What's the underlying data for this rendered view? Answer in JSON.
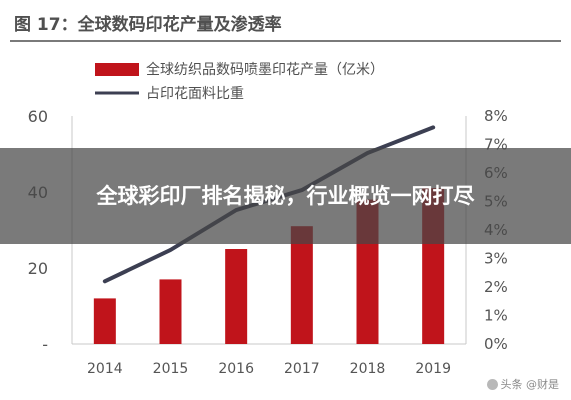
{
  "figure_title": "图 17：全球数码印花产量及渗透率",
  "overlay_title": "全球彩印厂排名揭秘，行业概览一网打尽",
  "watermark": "头条 @财是",
  "colors": {
    "bar": "#c0141b",
    "line": "#3c3f52",
    "axis": "#c8c8c8",
    "tick_text": "#555555",
    "overlay": "#464646"
  },
  "chart_data": {
    "type": "bar+line",
    "categories": [
      "2014",
      "2015",
      "2016",
      "2017",
      "2018",
      "2019"
    ],
    "series": [
      {
        "name": "全球纺织品数码喷墨印花产量（亿米）",
        "type": "bar",
        "axis": "left",
        "values": [
          12,
          17,
          25,
          31,
          38,
          41
        ]
      },
      {
        "name": "占印花面料比重",
        "type": "line",
        "axis": "right",
        "values": [
          2.2,
          3.3,
          4.7,
          5.4,
          6.7,
          7.6
        ]
      }
    ],
    "left_axis": {
      "ticks": [
        "60",
        "40",
        "20",
        "-"
      ],
      "ylim": [
        0,
        60
      ]
    },
    "right_axis": {
      "ticks": [
        "8%",
        "7%",
        "6%",
        "5%",
        "4%",
        "3%",
        "2%",
        "1%",
        "0%"
      ],
      "ylim": [
        0,
        8
      ]
    },
    "legend_position": "top"
  }
}
